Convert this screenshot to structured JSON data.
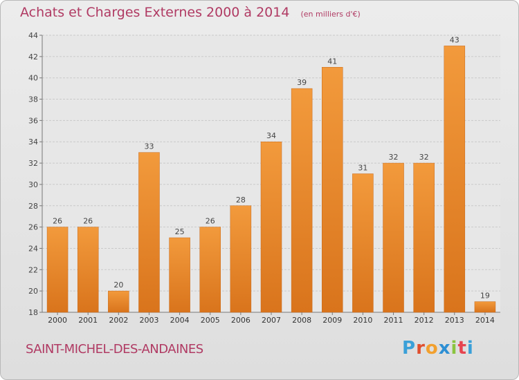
{
  "header": {
    "title": "Achats et Charges Externes 2000 à 2014",
    "unit": "(en milliers d'€)"
  },
  "footer": {
    "commune": "SAINT-MICHEL-DES-ANDAINES",
    "logo_text": "Proxiti",
    "logo_colors": [
      "#3aa0d8",
      "#e04f2e",
      "#f2a02e",
      "#2d8fd4",
      "#8ac43f",
      "#e6444f",
      "#3aa0d8"
    ]
  },
  "colors": {
    "bar": "#f29a3c",
    "bar_dark": "#d9741c",
    "title": "#b03a63",
    "grid": "#c9c9c9",
    "plot_bg": "#e7e7e7"
  },
  "chart_data": {
    "type": "bar",
    "title": "Achats et Charges Externes 2000 à 2014",
    "subtitle": "(en milliers d'€)",
    "xlabel": "",
    "ylabel": "",
    "categories": [
      "2000",
      "2001",
      "2002",
      "2003",
      "2004",
      "2005",
      "2006",
      "2007",
      "2008",
      "2009",
      "2010",
      "2011",
      "2012",
      "2013",
      "2014"
    ],
    "values": [
      26,
      26,
      20,
      33,
      25,
      26,
      28,
      34,
      39,
      41,
      31,
      32,
      32,
      43,
      19
    ],
    "ylim": [
      18,
      44
    ],
    "yticks": [
      18,
      20,
      22,
      24,
      26,
      28,
      30,
      32,
      34,
      36,
      38,
      40,
      42,
      44
    ],
    "grid": true,
    "data_labels": true
  }
}
